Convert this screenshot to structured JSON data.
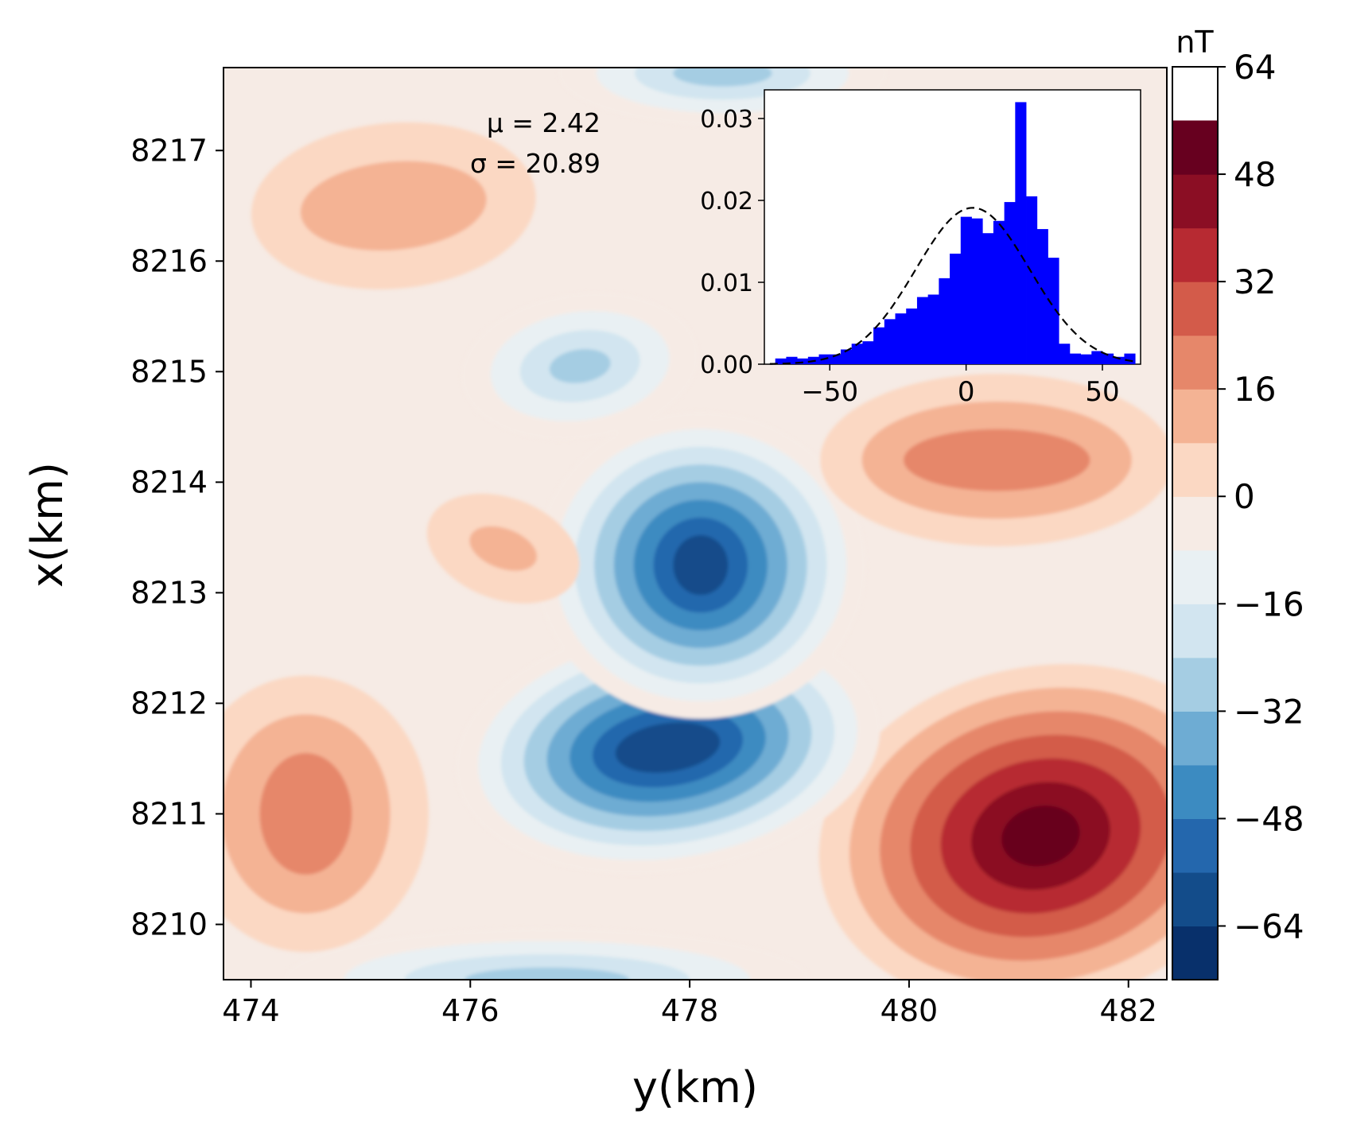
{
  "chart_data": [
    {
      "type": "heatmap",
      "subtype": "filled-contour",
      "title": "",
      "xlabel": "y(km)",
      "ylabel": "x(km)",
      "xlim": [
        473.75,
        482.35
      ],
      "ylim": [
        8209.5,
        8217.75
      ],
      "xticks": [
        474,
        476,
        478,
        480,
        482
      ],
      "yticks": [
        8210,
        8211,
        8212,
        8213,
        8214,
        8215,
        8216,
        8217
      ],
      "colormap": "RdBu_r",
      "colorbar": {
        "label": "nT",
        "range": [
          -72,
          64
        ],
        "levels": [
          -72,
          -64,
          -56,
          -48,
          -40,
          -32,
          -24,
          -16,
          -8,
          0,
          8,
          16,
          24,
          32,
          40,
          48,
          56,
          64
        ],
        "colors": [
          "#08306b",
          "#134c8a",
          "#2467ad",
          "#3c8bc1",
          "#6eacd3",
          "#a5cde3",
          "#d2e5f0",
          "#e9f0f3",
          "#f6ebe5",
          "#fbd8c3",
          "#f4b394",
          "#e6876a",
          "#d35b4a",
          "#b72a32",
          "#8b0e24",
          "#67001f"
        ],
        "ticks": [
          -64,
          -48,
          -32,
          -16,
          0,
          16,
          32,
          48,
          64
        ],
        "tick_labels": [
          "−64",
          "−48",
          "−32",
          "−16",
          "0",
          "16",
          "32",
          "48",
          "64"
        ]
      },
      "features": [
        {
          "kind": "max",
          "y_km": 481.2,
          "x_km": 8210.8,
          "value": 60
        },
        {
          "kind": "min",
          "y_km": 477.8,
          "x_km": 8211.6,
          "value": -68
        },
        {
          "kind": "min",
          "y_km": 478.1,
          "x_km": 8213.25,
          "value": -64
        },
        {
          "kind": "min",
          "y_km": 477.0,
          "x_km": 8215.05,
          "value": -34
        },
        {
          "kind": "min",
          "y_km": 478.3,
          "x_km": 8217.7,
          "value": -34
        },
        {
          "kind": "min",
          "y_km": 476.7,
          "x_km": 8209.5,
          "value": -38
        },
        {
          "kind": "max",
          "y_km": 480.8,
          "x_km": 8214.2,
          "value": 30
        },
        {
          "kind": "max",
          "y_km": 474.5,
          "x_km": 8211.0,
          "value": 28
        },
        {
          "kind": "max",
          "y_km": 475.3,
          "x_km": 8216.5,
          "value": 21
        },
        {
          "kind": "max",
          "y_km": 476.3,
          "x_km": 8213.4,
          "value": 18
        }
      ],
      "annotations": [
        "μ = 2.42",
        "σ = 20.89"
      ]
    },
    {
      "type": "bar",
      "subtype": "histogram",
      "title": "",
      "xlabel": "",
      "ylabel": "",
      "xlim": [
        -74,
        64
      ],
      "ylim": [
        0,
        0.0335
      ],
      "xticks": [
        -50,
        0,
        50
      ],
      "xtick_labels": [
        "−50",
        "0",
        "50"
      ],
      "yticks": [
        0.0,
        0.01,
        0.02,
        0.03
      ],
      "ytick_labels": [
        "0.00",
        "0.01",
        "0.02",
        "0.03"
      ],
      "bin_width": 4,
      "series": [
        {
          "kind": "histogram",
          "color": "#0000ff",
          "bins": [
            {
              "x0": -70,
              "x1": -66,
              "density": 0.0007
            },
            {
              "x0": -66,
              "x1": -62,
              "density": 0.0009
            },
            {
              "x0": -62,
              "x1": -58,
              "density": 0.0007
            },
            {
              "x0": -58,
              "x1": -54,
              "density": 0.0009
            },
            {
              "x0": -54,
              "x1": -50,
              "density": 0.0012
            },
            {
              "x0": -50,
              "x1": -46,
              "density": 0.0012
            },
            {
              "x0": -46,
              "x1": -42,
              "density": 0.0018
            },
            {
              "x0": -42,
              "x1": -38,
              "density": 0.0025
            },
            {
              "x0": -38,
              "x1": -34,
              "density": 0.0028
            },
            {
              "x0": -34,
              "x1": -30,
              "density": 0.0045
            },
            {
              "x0": -30,
              "x1": -26,
              "density": 0.0055
            },
            {
              "x0": -26,
              "x1": -22,
              "density": 0.0062
            },
            {
              "x0": -22,
              "x1": -18,
              "density": 0.0068
            },
            {
              "x0": -18,
              "x1": -14,
              "density": 0.0082
            },
            {
              "x0": -14,
              "x1": -10,
              "density": 0.0085
            },
            {
              "x0": -10,
              "x1": -6,
              "density": 0.0105
            },
            {
              "x0": -6,
              "x1": -2,
              "density": 0.0135
            },
            {
              "x0": -2,
              "x1": 2,
              "density": 0.018
            },
            {
              "x0": 2,
              "x1": 6,
              "density": 0.0178
            },
            {
              "x0": 6,
              "x1": 10,
              "density": 0.016
            },
            {
              "x0": 10,
              "x1": 14,
              "density": 0.0175
            },
            {
              "x0": 14,
              "x1": 18,
              "density": 0.0198
            },
            {
              "x0": 18,
              "x1": 22,
              "density": 0.032
            },
            {
              "x0": 22,
              "x1": 26,
              "density": 0.0205
            },
            {
              "x0": 26,
              "x1": 30,
              "density": 0.0165
            },
            {
              "x0": 30,
              "x1": 34,
              "density": 0.013
            },
            {
              "x0": 34,
              "x1": 38,
              "density": 0.0025
            },
            {
              "x0": 38,
              "x1": 42,
              "density": 0.0013
            },
            {
              "x0": 42,
              "x1": 46,
              "density": 0.0012
            },
            {
              "x0": 46,
              "x1": 50,
              "density": 0.0016
            },
            {
              "x0": 50,
              "x1": 54,
              "density": 0.0013
            },
            {
              "x0": 54,
              "x1": 58,
              "density": 0.0009
            },
            {
              "x0": 58,
              "x1": 62,
              "density": 0.0013
            }
          ]
        },
        {
          "kind": "normal-pdf",
          "style": "dashed",
          "color": "#000000",
          "mu": 2.42,
          "sigma": 20.89
        }
      ]
    }
  ]
}
